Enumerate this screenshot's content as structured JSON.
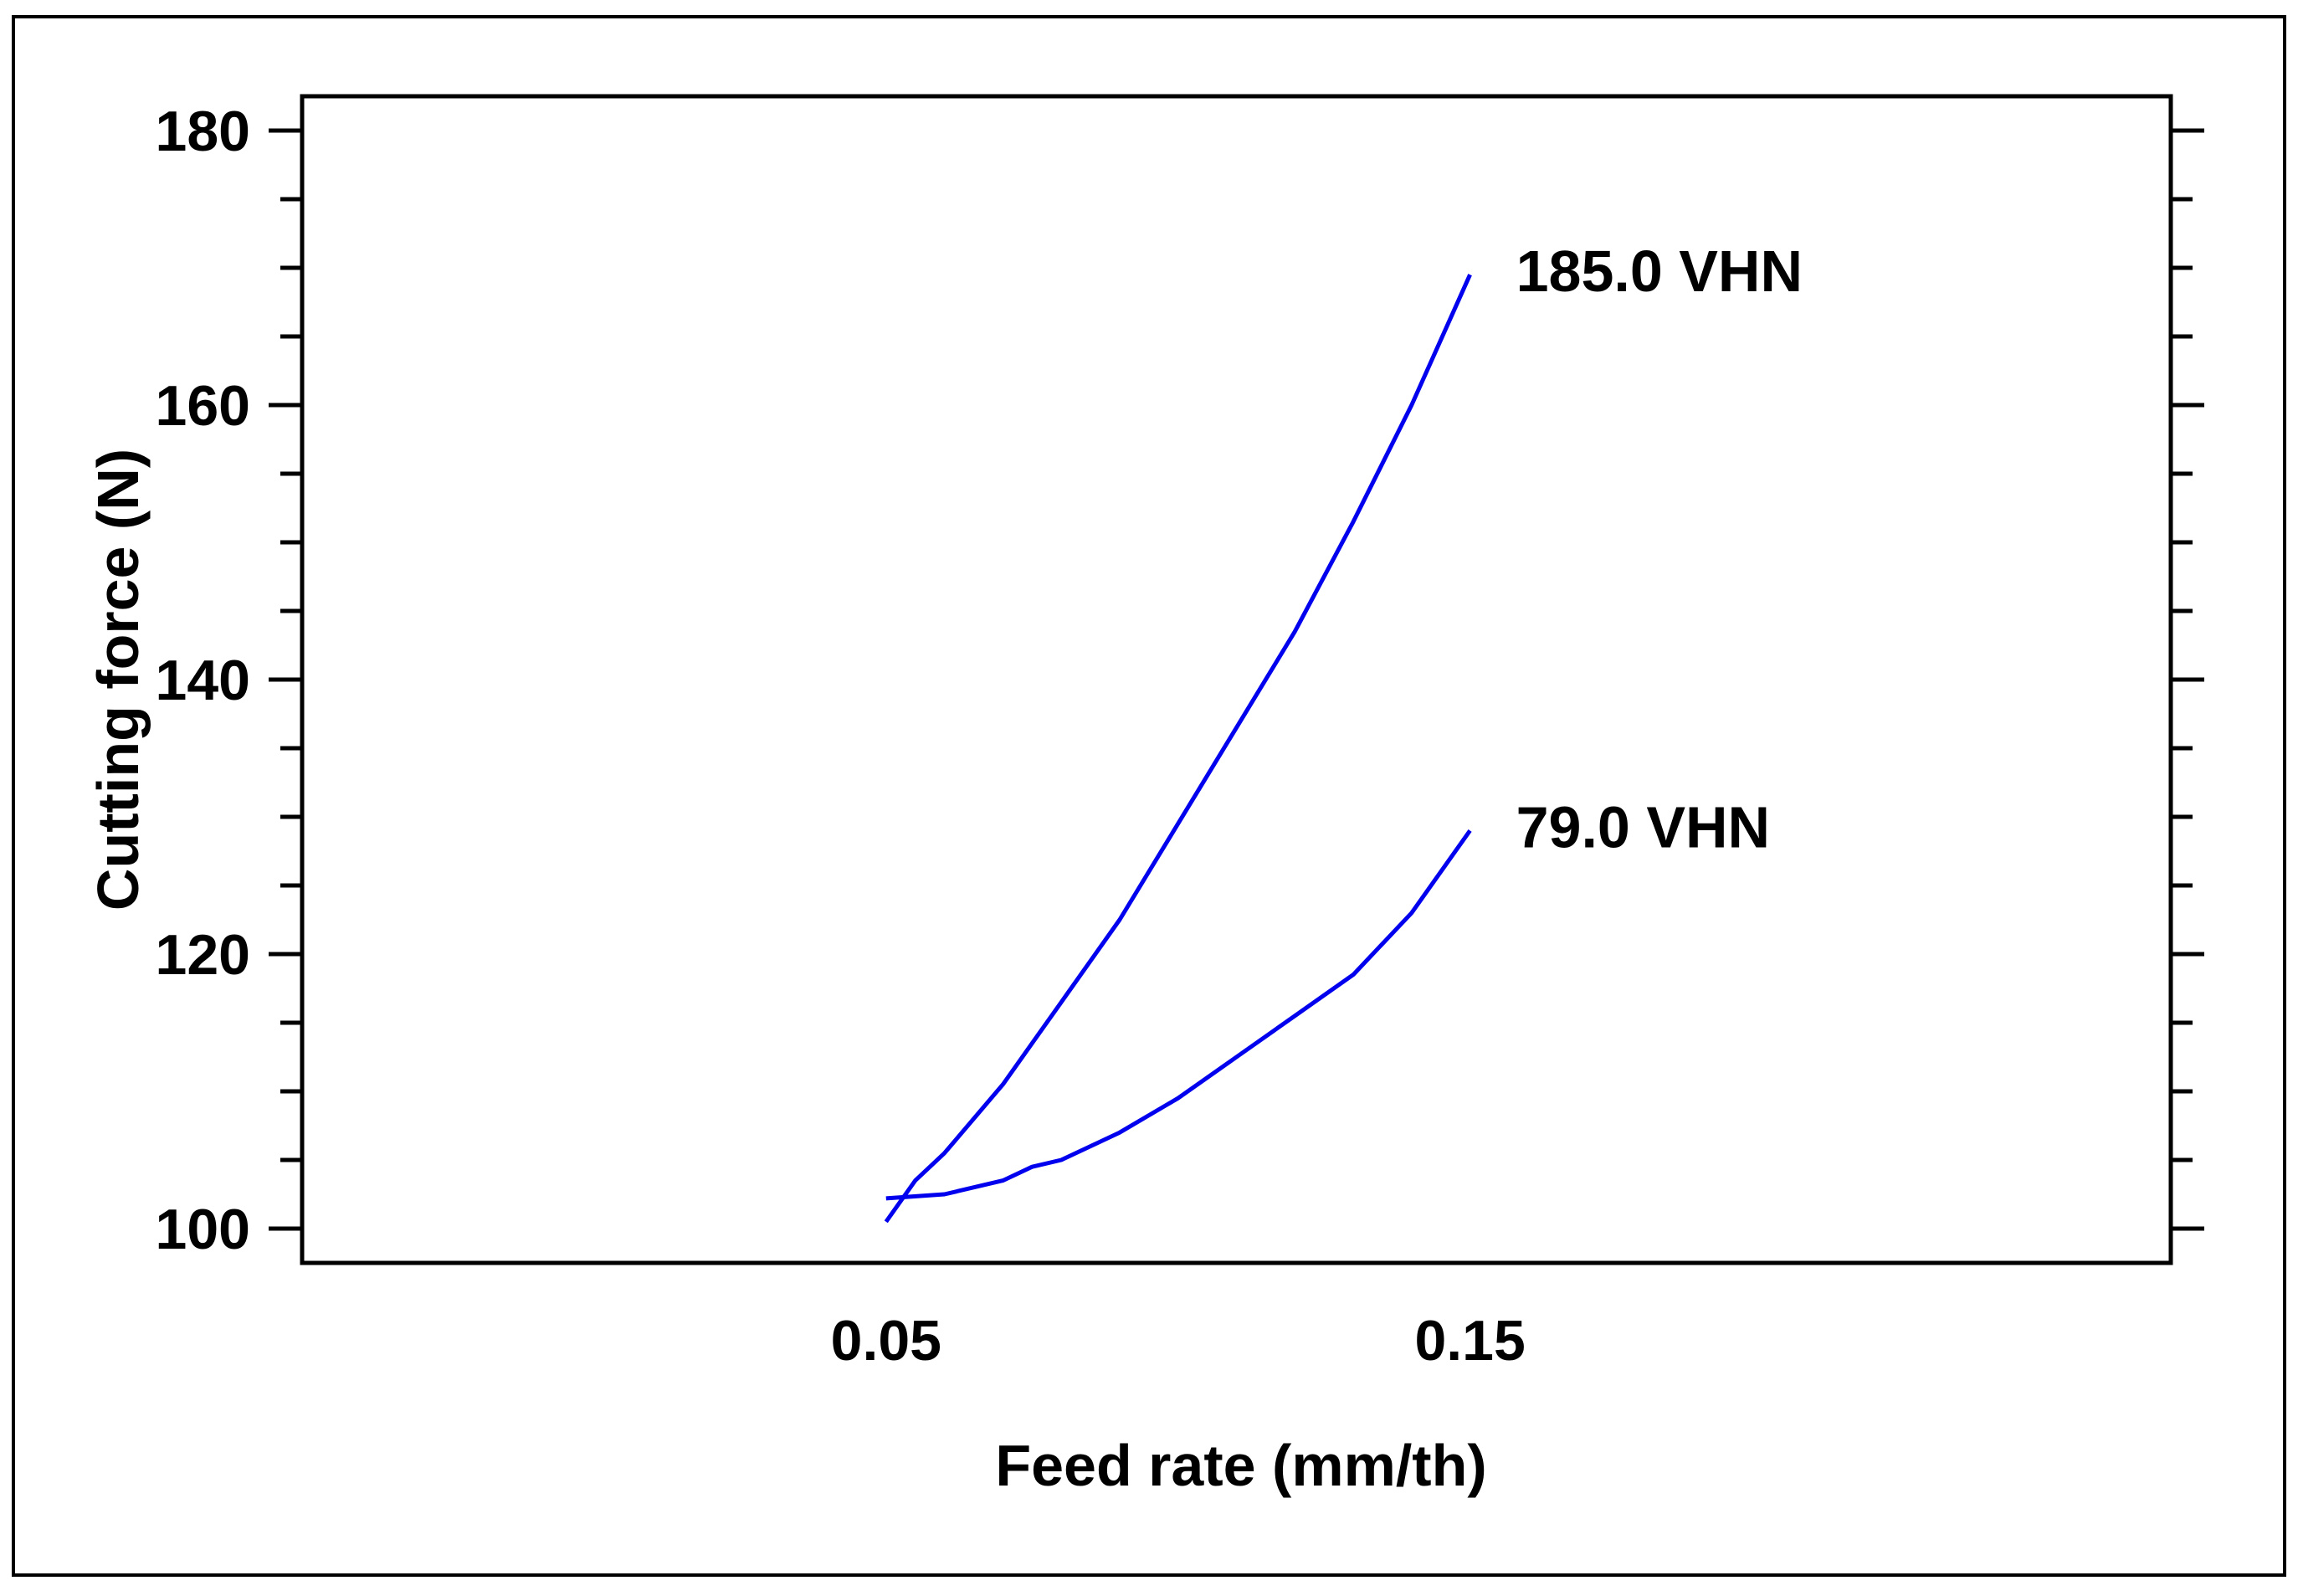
{
  "chart_data": {
    "type": "line",
    "title": "",
    "xlabel": "Feed rate (mm/th)",
    "ylabel": "Cutting force (N)",
    "xlim": [
      -0.05,
      0.27
    ],
    "ylim": [
      97.5,
      182.5
    ],
    "xticks": [
      0.05,
      0.15
    ],
    "xtick_labels": [
      "0.05",
      "0.15"
    ],
    "yticks": [
      100,
      120,
      140,
      160,
      180
    ],
    "ytick_labels": [
      "100",
      "120",
      "140",
      "160",
      "180"
    ],
    "y_minor_step": 5,
    "grid": false,
    "legend": "none",
    "colors": {
      "series": "#0000ee",
      "axes": "#000000",
      "background": "#ffffff"
    },
    "series": [
      {
        "name": "185.0 VHN",
        "x": [
          0.05,
          0.055,
          0.06,
          0.07,
          0.075,
          0.08,
          0.09,
          0.1,
          0.11,
          0.12,
          0.13,
          0.14,
          0.15
        ],
        "values": [
          100.5,
          103.5,
          105.5,
          110.5,
          113.5,
          116.5,
          122.5,
          129.5,
          136.5,
          143.5,
          151.5,
          160.0,
          169.5
        ]
      },
      {
        "name": "79.0 VHN",
        "x": [
          0.05,
          0.06,
          0.07,
          0.075,
          0.08,
          0.09,
          0.1,
          0.11,
          0.12,
          0.13,
          0.14,
          0.15
        ],
        "values": [
          102.2,
          102.5,
          103.5,
          104.5,
          105.0,
          107.0,
          109.5,
          112.5,
          115.5,
          118.5,
          123.0,
          129.0
        ]
      }
    ]
  }
}
